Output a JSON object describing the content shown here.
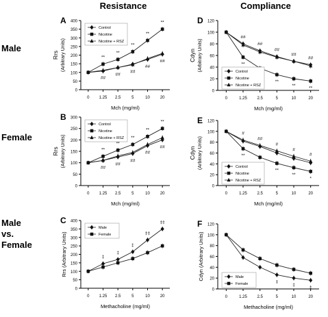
{
  "figure": {
    "column_headers": [
      "Resistance",
      "Compliance"
    ],
    "row_labels": [
      [
        "Male"
      ],
      [
        "Female"
      ],
      [
        "Male",
        "vs.",
        "Female"
      ]
    ]
  },
  "chart_data": [
    {
      "panel": "A",
      "type": "line",
      "categories": [
        "0",
        "1.25",
        "2.5",
        "5",
        "10",
        "20"
      ],
      "xlabel": "Mch (mg/ml)",
      "ylabel": [
        "Rrs",
        "(Arbitrary Units)"
      ],
      "ylim": [
        0,
        400
      ],
      "yticks": [
        0,
        50,
        100,
        150,
        200,
        250,
        300,
        350,
        400
      ],
      "legend": "top-left",
      "series": [
        {
          "name": "Control",
          "marker": "diamond",
          "values": [
            100,
            108,
            128,
            148,
            175,
            205
          ]
        },
        {
          "name": "Nicotine",
          "marker": "square",
          "values": [
            100,
            148,
            175,
            220,
            285,
            350
          ]
        },
        {
          "name": "Nicotine + RSZ",
          "marker": "triangle",
          "values": [
            100,
            112,
            128,
            145,
            180,
            210
          ]
        }
      ],
      "annotations": [
        {
          "x": "1.25",
          "text": "**",
          "pos": "above"
        },
        {
          "x": "2.5",
          "text": "**",
          "pos": "above"
        },
        {
          "x": "5",
          "text": "**",
          "pos": "above"
        },
        {
          "x": "10",
          "text": "**",
          "pos": "above"
        },
        {
          "x": "20",
          "text": "**",
          "pos": "above"
        },
        {
          "x": "1.25",
          "text": "##",
          "pos": "below"
        },
        {
          "x": "2.5",
          "text": "##",
          "pos": "below"
        },
        {
          "x": "5",
          "text": "##",
          "pos": "below"
        },
        {
          "x": "10",
          "text": "##",
          "pos": "below"
        },
        {
          "x": "20",
          "text": "##",
          "pos": "below"
        }
      ]
    },
    {
      "panel": "B",
      "type": "line",
      "categories": [
        "0",
        "1.25",
        "2.5",
        "5",
        "10",
        "20"
      ],
      "xlabel": "Mch (mg/ml)",
      "ylabel": [
        "Rrs",
        "(Arbitrary Units)"
      ],
      "ylim": [
        0,
        300
      ],
      "yticks": [
        0,
        50,
        100,
        150,
        200,
        250,
        300
      ],
      "legend": "top-left",
      "series": [
        {
          "name": "Control",
          "marker": "diamond",
          "values": [
            100,
            110,
            125,
            140,
            175,
            200
          ]
        },
        {
          "name": "Nicotine",
          "marker": "square",
          "values": [
            100,
            128,
            155,
            180,
            215,
            250
          ]
        },
        {
          "name": "Nicotine + RSZ",
          "marker": "triangle",
          "values": [
            100,
            110,
            130,
            145,
            180,
            210
          ]
        }
      ],
      "annotations": [
        {
          "x": "1.25",
          "text": "**",
          "pos": "above"
        },
        {
          "x": "2.5",
          "text": "**",
          "pos": "above"
        },
        {
          "x": "5",
          "text": "**",
          "pos": "above"
        },
        {
          "x": "10",
          "text": "**",
          "pos": "above"
        },
        {
          "x": "20",
          "text": "**",
          "pos": "above"
        },
        {
          "x": "1.25",
          "text": "##",
          "pos": "below"
        },
        {
          "x": "2.5",
          "text": "##",
          "pos": "below"
        },
        {
          "x": "5",
          "text": "##",
          "pos": "below"
        },
        {
          "x": "10",
          "text": "##",
          "pos": "below"
        },
        {
          "x": "20",
          "text": "##",
          "pos": "below"
        }
      ]
    },
    {
      "panel": "C",
      "type": "line",
      "categories": [
        "0",
        "1.25",
        "2.5",
        "5",
        "10",
        "20"
      ],
      "xlabel": "Methacholine (mg/ml)",
      "ylabel": [
        "Rrs (Arbitrary Units)"
      ],
      "ylim": [
        0,
        400
      ],
      "yticks": [
        0,
        50,
        100,
        150,
        200,
        250,
        300,
        350,
        400
      ],
      "legend": "top-left",
      "series": [
        {
          "name": "Male",
          "marker": "diamond",
          "values": [
            100,
            145,
            170,
            215,
            285,
            350
          ]
        },
        {
          "name": "Female",
          "marker": "square",
          "values": [
            100,
            125,
            150,
            175,
            210,
            250
          ]
        }
      ],
      "annotations": [
        {
          "x": "1.25",
          "text": "‡",
          "pos": "above"
        },
        {
          "x": "2.5",
          "text": "‡",
          "pos": "above"
        },
        {
          "x": "5",
          "text": "‡",
          "pos": "above"
        },
        {
          "x": "10",
          "text": "‡‡",
          "pos": "above"
        },
        {
          "x": "20",
          "text": "‡‡",
          "pos": "above"
        }
      ]
    },
    {
      "panel": "D",
      "type": "line",
      "categories": [
        "0",
        "1.25",
        "2.5",
        "5",
        "10",
        "20"
      ],
      "xlabel": "Mch (mg/ml)",
      "ylabel": [
        "Cdyn",
        "(Arbitrary Units)"
      ],
      "ylim": [
        0,
        120
      ],
      "yticks": [
        0,
        20,
        40,
        60,
        80,
        100,
        120
      ],
      "legend": "bottom-left",
      "series": [
        {
          "name": "Control",
          "marker": "diamond",
          "values": [
            100,
            80,
            68,
            58,
            50,
            44
          ]
        },
        {
          "name": "Nicotine",
          "marker": "square",
          "values": [
            100,
            57,
            38,
            27,
            20,
            16
          ]
        },
        {
          "name": "Nicotine + RSZ",
          "marker": "triangle",
          "values": [
            100,
            78,
            66,
            57,
            50,
            42
          ]
        }
      ],
      "annotations": [
        {
          "x": "1.25",
          "text": "##",
          "pos": "above"
        },
        {
          "x": "2.5",
          "text": "##",
          "pos": "above"
        },
        {
          "x": "5",
          "text": "##",
          "pos": "above"
        },
        {
          "x": "10",
          "text": "##",
          "pos": "above"
        },
        {
          "x": "20",
          "text": "##",
          "pos": "above"
        },
        {
          "x": "1.25",
          "text": "**",
          "pos": "below"
        },
        {
          "x": "2.5",
          "text": "**",
          "pos": "below"
        },
        {
          "x": "5",
          "text": "**",
          "pos": "below"
        },
        {
          "x": "10",
          "text": "**",
          "pos": "below"
        },
        {
          "x": "20",
          "text": "**",
          "pos": "below"
        }
      ]
    },
    {
      "panel": "E",
      "type": "line",
      "categories": [
        "0",
        "1.25",
        "2.5",
        "5",
        "10",
        "20"
      ],
      "xlabel": "Mch (mg/ml)",
      "ylabel": [
        "Cdyn",
        "(Arbitrary Units)"
      ],
      "ylim": [
        0,
        120
      ],
      "yticks": [
        0,
        20,
        40,
        60,
        80,
        100,
        120
      ],
      "legend": "bottom-left",
      "series": [
        {
          "name": "Control",
          "marker": "diamond",
          "values": [
            100,
            82,
            72,
            60,
            50,
            42
          ]
        },
        {
          "name": "Nicotine",
          "marker": "square",
          "values": [
            100,
            68,
            52,
            41,
            33,
            26
          ]
        },
        {
          "name": "Nicotine + RSZ",
          "marker": "triangle",
          "values": [
            100,
            84,
            74,
            64,
            54,
            45
          ]
        }
      ],
      "annotations": [
        {
          "x": "1.25",
          "text": "#",
          "pos": "above"
        },
        {
          "x": "2.5",
          "text": "##",
          "pos": "above"
        },
        {
          "x": "5",
          "text": "#",
          "pos": "above"
        },
        {
          "x": "10",
          "text": "#",
          "pos": "above"
        },
        {
          "x": "20",
          "text": "#",
          "pos": "above"
        },
        {
          "x": "1.25",
          "text": "**",
          "pos": "below"
        },
        {
          "x": "2.5",
          "text": "**",
          "pos": "below"
        },
        {
          "x": "5",
          "text": "**",
          "pos": "below"
        },
        {
          "x": "10",
          "text": "**",
          "pos": "below"
        },
        {
          "x": "20",
          "text": "*",
          "pos": "below"
        }
      ]
    },
    {
      "panel": "F",
      "type": "line",
      "categories": [
        "0",
        "1.25",
        "2.5",
        "5",
        "10",
        "20"
      ],
      "xlabel": "Methacholine (mg/ml)",
      "ylabel": [
        "Cdyn (Arbitrary Units)"
      ],
      "ylim": [
        0,
        120
      ],
      "yticks": [
        0,
        20,
        40,
        60,
        80,
        100,
        120
      ],
      "legend": "bottom-left",
      "series": [
        {
          "name": "Male",
          "marker": "diamond",
          "values": [
            100,
            58,
            40,
            26,
            20,
            16
          ]
        },
        {
          "name": "Female",
          "marker": "square",
          "values": [
            100,
            72,
            56,
            44,
            36,
            29
          ]
        }
      ],
      "annotations": [
        {
          "x": "5",
          "text": "‡",
          "pos": "below"
        },
        {
          "x": "10",
          "text": "‡",
          "pos": "below"
        },
        {
          "x": "20",
          "text": "‡",
          "pos": "below"
        }
      ]
    }
  ]
}
